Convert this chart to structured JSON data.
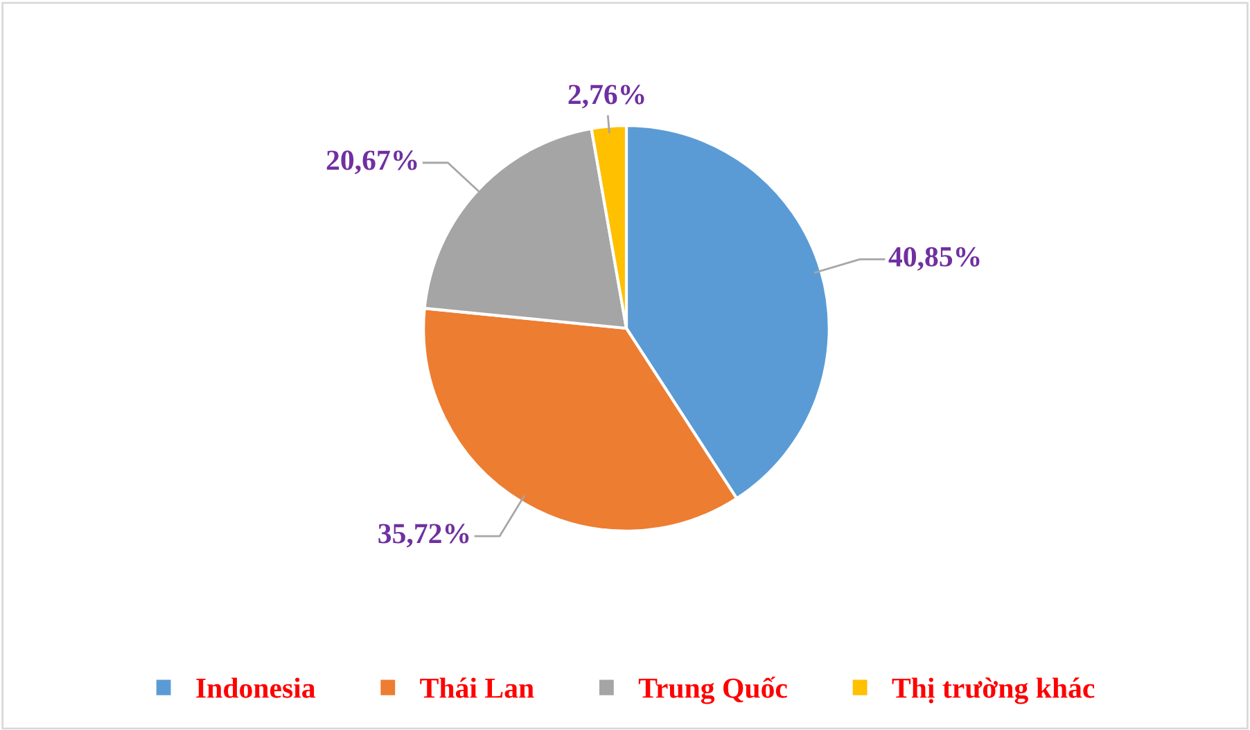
{
  "chart_data": {
    "type": "pie",
    "categories": [
      "Indonesia",
      "Thái Lan",
      "Trung Quốc",
      "Thị trường khác"
    ],
    "values": [
      40.85,
      35.72,
      20.67,
      2.76
    ],
    "value_labels": [
      "40,85%",
      "35,72%",
      "20,67%",
      "2,76%"
    ],
    "colors": [
      "#5b9bd5",
      "#ed7d31",
      "#a5a5a5",
      "#ffc000"
    ],
    "legend": "bottom"
  }
}
